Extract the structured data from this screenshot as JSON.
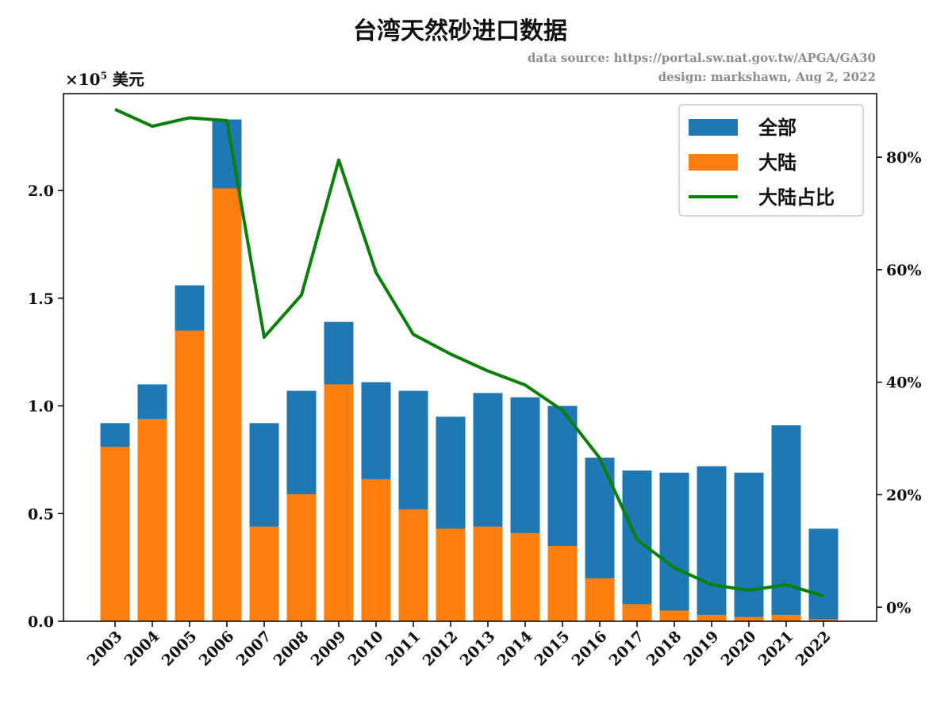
{
  "chart_data": {
    "type": "bar",
    "title": "台湾天然砂进口数据",
    "notes": [
      "data source:  https://portal.sw.nat.gov.tw/APGA/GA30",
      "design: markshawn, Aug 2, 2022"
    ],
    "y_unit": {
      "prefix": "×10",
      "exponent": "5",
      "suffix": " 美元"
    },
    "categories": [
      "2003",
      "2004",
      "2005",
      "2006",
      "2007",
      "2008",
      "2009",
      "2010",
      "2011",
      "2012",
      "2013",
      "2014",
      "2015",
      "2016",
      "2017",
      "2018",
      "2019",
      "2020",
      "2021",
      "2022"
    ],
    "series": [
      {
        "name": "全部",
        "type": "bar",
        "axis": "left",
        "color": "#1f77b4",
        "values": [
          0.92,
          1.1,
          1.56,
          2.33,
          0.92,
          1.07,
          1.39,
          1.11,
          1.07,
          0.95,
          1.06,
          1.04,
          1.0,
          0.76,
          0.7,
          0.69,
          0.72,
          0.69,
          0.91,
          0.43
        ]
      },
      {
        "name": "大陆",
        "type": "bar",
        "axis": "left",
        "color": "#ff7f0e",
        "values": [
          0.81,
          0.94,
          1.35,
          2.01,
          0.44,
          0.59,
          1.1,
          0.66,
          0.52,
          0.43,
          0.44,
          0.41,
          0.35,
          0.2,
          0.08,
          0.05,
          0.03,
          0.02,
          0.03,
          0.01
        ]
      },
      {
        "name": "大陆占比",
        "type": "line",
        "axis": "right",
        "color": "#0a7f0a",
        "values": [
          88.5,
          85.5,
          87.0,
          86.5,
          48.0,
          55.5,
          79.5,
          59.5,
          48.5,
          45.0,
          42.0,
          39.5,
          35.0,
          26.5,
          12.0,
          7.0,
          4.0,
          3.0,
          4.0,
          2.0
        ]
      }
    ],
    "left_axis": {
      "ylim": [
        0,
        2.45
      ],
      "ticks": [
        0,
        0.5,
        1.0,
        1.5,
        2.0
      ],
      "tick_labels": [
        "0.0",
        "0.5",
        "1.0",
        "1.5",
        "2.0"
      ]
    },
    "right_axis": {
      "ylim": [
        -2.5,
        91.3
      ],
      "ticks": [
        0,
        20,
        40,
        60,
        80
      ],
      "tick_labels": [
        "0%",
        "20%",
        "40%",
        "60%",
        "80%"
      ]
    },
    "legend": {
      "position": "top-right",
      "entries": [
        "全部",
        "大陆",
        "大陆占比"
      ]
    },
    "grid": false
  }
}
